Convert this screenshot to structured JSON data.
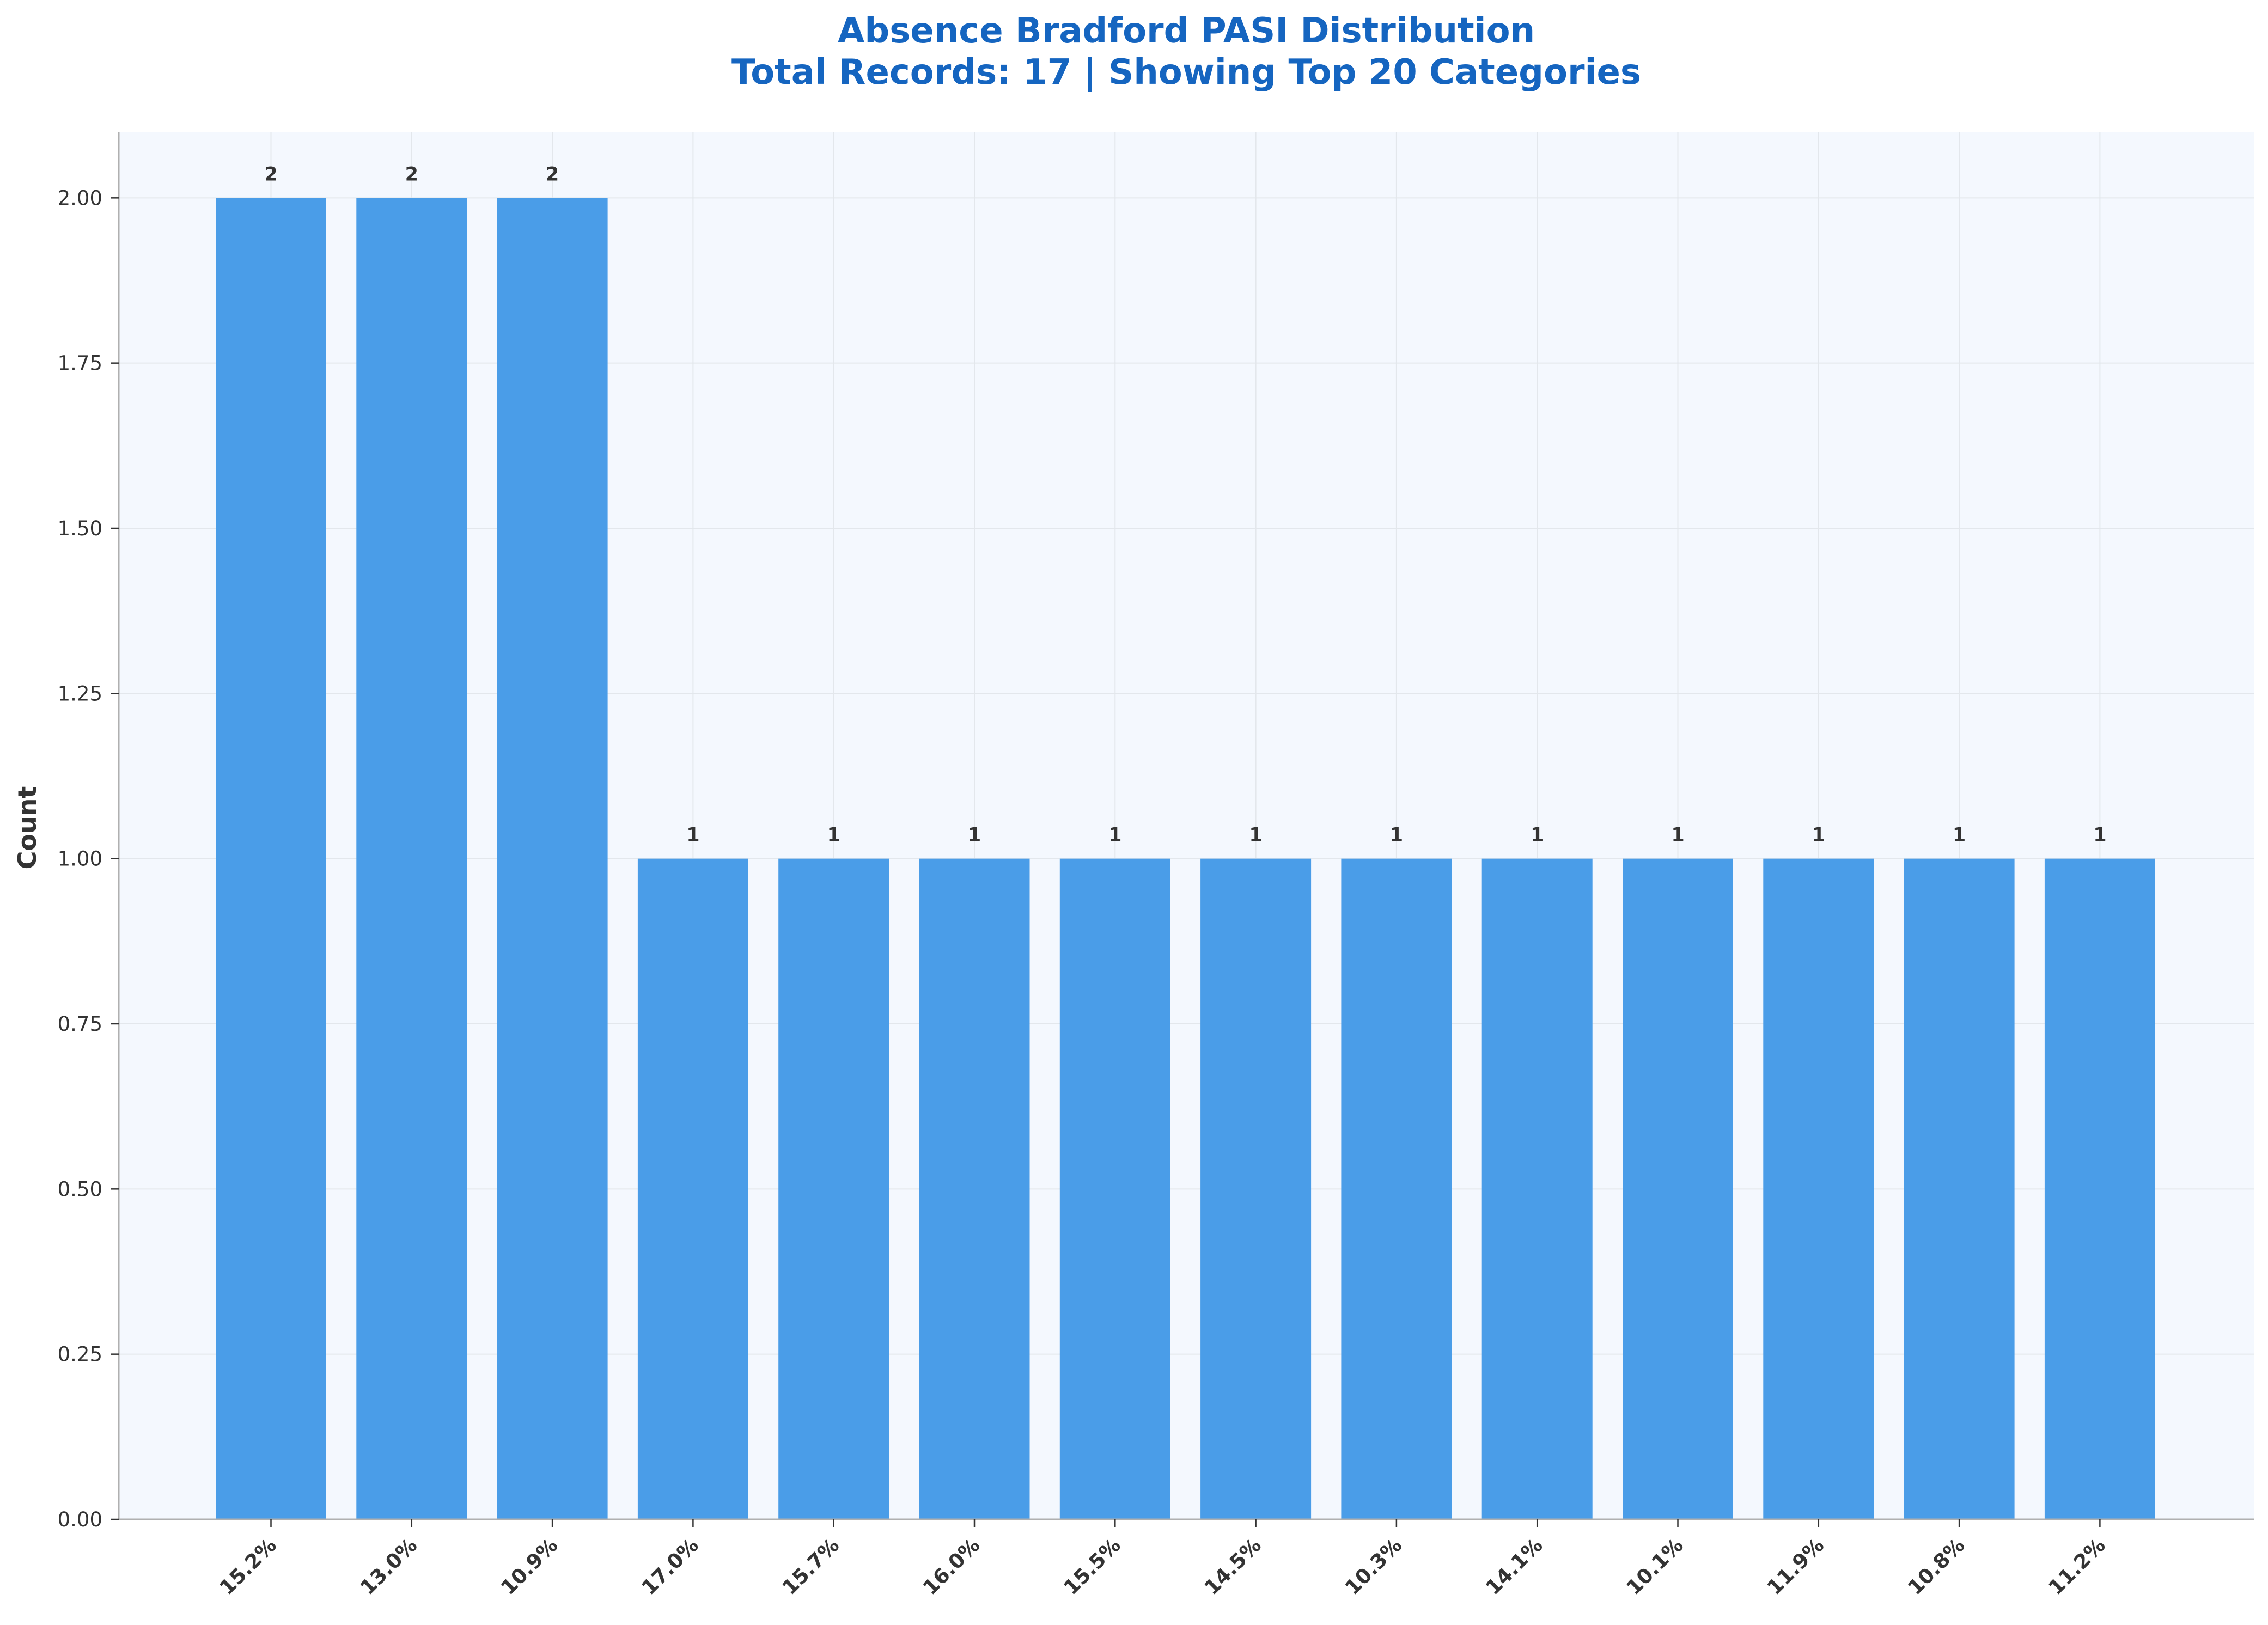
{
  "chart_data": {
    "type": "bar",
    "title": "Absence Bradford PASI Distribution",
    "subtitle": "Total Records: 17 | Showing Top 20 Categories",
    "xlabel": "",
    "ylabel": "Count",
    "categories": [
      "15.2%",
      "13.0%",
      "10.9%",
      "17.0%",
      "15.7%",
      "16.0%",
      "15.5%",
      "14.5%",
      "10.3%",
      "14.1%",
      "10.1%",
      "11.9%",
      "10.8%",
      "11.2%"
    ],
    "values": [
      2,
      2,
      2,
      1,
      1,
      1,
      1,
      1,
      1,
      1,
      1,
      1,
      1,
      1
    ],
    "data_labels": [
      "2",
      "2",
      "2",
      "1",
      "1",
      "1",
      "1",
      "1",
      "1",
      "1",
      "1",
      "1",
      "1",
      "1"
    ],
    "yticks": [
      "0.00",
      "0.25",
      "0.50",
      "0.75",
      "1.00",
      "1.25",
      "1.50",
      "1.75",
      "2.00"
    ],
    "ylim": [
      0,
      2.1
    ],
    "grid": true,
    "legend": "none",
    "colors": {
      "bar": "#4A9DE8",
      "title": "#1565C0",
      "plot_background": "#F4F8FE",
      "grid": "#E3E7EC",
      "axis": "#B0B0B0",
      "text": "#333333"
    }
  }
}
